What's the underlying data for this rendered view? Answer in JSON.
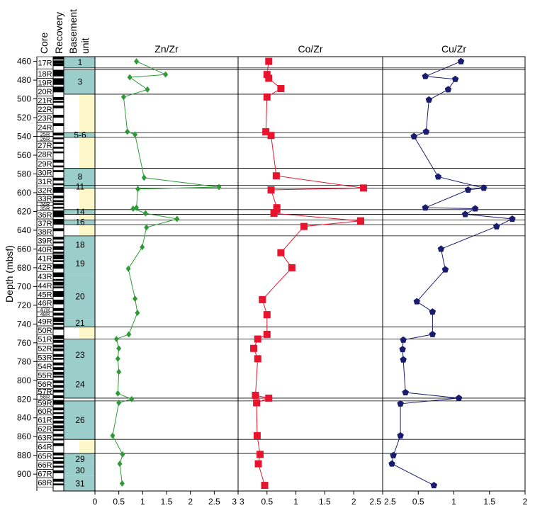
{
  "chart_data": {
    "type": "scatter",
    "ylabel": "Depth (mbsf)",
    "ylim": [
      455,
      918
    ],
    "yticks": [
      460,
      480,
      500,
      520,
      540,
      560,
      580,
      600,
      620,
      640,
      660,
      680,
      700,
      720,
      740,
      760,
      780,
      800,
      820,
      840,
      860,
      880,
      900
    ],
    "column_headers": {
      "core": "Core",
      "recovery": "Recovery",
      "basement_unit": "Basement\nunit"
    },
    "cores": [
      {
        "label": "17R",
        "top": 455,
        "bottom": 468
      },
      {
        "label": "18R",
        "top": 468,
        "bottom": 478
      },
      {
        "label": "19R",
        "top": 478,
        "bottom": 487
      },
      {
        "label": "20R",
        "top": 487,
        "bottom": 497
      },
      {
        "label": "21R",
        "top": 497,
        "bottom": 506
      },
      {
        "label": "22R",
        "top": 506,
        "bottom": 516
      },
      {
        "label": "23R",
        "top": 516,
        "bottom": 525
      },
      {
        "label": "24R",
        "top": 525,
        "bottom": 535
      },
      {
        "label": "25R",
        "top": 535,
        "bottom": 540
      },
      {
        "label": "26R",
        "top": 540,
        "bottom": 545
      },
      {
        "label": "27R",
        "top": 545,
        "bottom": 554
      },
      {
        "label": "28R",
        "top": 554,
        "bottom": 564
      },
      {
        "label": "29R",
        "top": 564,
        "bottom": 574
      },
      {
        "label": "30R",
        "top": 574,
        "bottom": 583
      },
      {
        "label": "31R",
        "top": 583,
        "bottom": 593
      },
      {
        "label": "32R",
        "top": 593,
        "bottom": 602
      },
      {
        "label": "33R",
        "top": 602,
        "bottom": 610
      },
      {
        "label": "34R",
        "top": 610,
        "bottom": 614
      },
      {
        "label": "35R",
        "top": 614,
        "bottom": 619
      },
      {
        "label": "36R",
        "top": 619,
        "bottom": 628
      },
      {
        "label": "37R",
        "top": 628,
        "bottom": 637
      },
      {
        "label": "38R",
        "top": 637,
        "bottom": 646
      },
      {
        "label": "39R",
        "top": 646,
        "bottom": 656
      },
      {
        "label": "40R",
        "top": 656,
        "bottom": 665
      },
      {
        "label": "41R",
        "top": 665,
        "bottom": 675
      },
      {
        "label": "42R",
        "top": 675,
        "bottom": 684
      },
      {
        "label": "43R",
        "top": 684,
        "bottom": 694
      },
      {
        "label": "44R",
        "top": 694,
        "bottom": 704
      },
      {
        "label": "45R",
        "top": 704,
        "bottom": 713
      },
      {
        "label": "46R",
        "top": 713,
        "bottom": 722
      },
      {
        "label": "47R",
        "top": 722,
        "bottom": 727
      },
      {
        "label": "48R",
        "top": 727,
        "bottom": 732
      },
      {
        "label": "49R",
        "top": 732,
        "bottom": 742
      },
      {
        "label": "50R",
        "top": 742,
        "bottom": 751
      },
      {
        "label": "51R",
        "top": 751,
        "bottom": 761
      },
      {
        "label": "52R",
        "top": 761,
        "bottom": 771
      },
      {
        "label": "53R",
        "top": 771,
        "bottom": 780
      },
      {
        "label": "54R",
        "top": 780,
        "bottom": 790
      },
      {
        "label": "55R",
        "top": 790,
        "bottom": 799
      },
      {
        "label": "56R",
        "top": 799,
        "bottom": 809
      },
      {
        "label": "57R",
        "top": 809,
        "bottom": 815
      },
      {
        "label": "58R",
        "top": 815,
        "bottom": 820
      },
      {
        "label": "59R",
        "top": 820,
        "bottom": 828
      },
      {
        "label": "60R",
        "top": 828,
        "bottom": 837
      },
      {
        "label": "61R",
        "top": 837,
        "bottom": 847
      },
      {
        "label": "62R",
        "top": 847,
        "bottom": 856
      },
      {
        "label": "63R",
        "top": 856,
        "bottom": 866
      },
      {
        "label": "64R",
        "top": 866,
        "bottom": 876
      },
      {
        "label": "65R",
        "top": 876,
        "bottom": 885
      },
      {
        "label": "66R",
        "top": 885,
        "bottom": 895
      },
      {
        "label": "67R",
        "top": 895,
        "bottom": 904
      },
      {
        "label": "68R",
        "top": 904,
        "bottom": 914
      }
    ],
    "recovery": [
      [
        455,
        458
      ],
      [
        459,
        462
      ],
      [
        462,
        465
      ],
      [
        469,
        476
      ],
      [
        478,
        485
      ],
      [
        487,
        493
      ],
      [
        498,
        501
      ],
      [
        502,
        504
      ],
      [
        507,
        510
      ],
      [
        517,
        520
      ],
      [
        526,
        529
      ],
      [
        536,
        539
      ],
      [
        541,
        543
      ],
      [
        546,
        548
      ],
      [
        551,
        553
      ],
      [
        556,
        558
      ],
      [
        565,
        568
      ],
      [
        571,
        573
      ],
      [
        576,
        578
      ],
      [
        584,
        587
      ],
      [
        590,
        592
      ],
      [
        594,
        600
      ],
      [
        603,
        606
      ],
      [
        608,
        610
      ],
      [
        611,
        613
      ],
      [
        615,
        617
      ],
      [
        619,
        626
      ],
      [
        628,
        634
      ],
      [
        638,
        641
      ],
      [
        647,
        650
      ],
      [
        652,
        654
      ],
      [
        657,
        661
      ],
      [
        663,
        665
      ],
      [
        666,
        671
      ],
      [
        672,
        674
      ],
      [
        676,
        681
      ],
      [
        685,
        690
      ],
      [
        692,
        694
      ],
      [
        695,
        699
      ],
      [
        700,
        702
      ],
      [
        705,
        711
      ],
      [
        714,
        719
      ],
      [
        723,
        726
      ],
      [
        728,
        731
      ],
      [
        733,
        738
      ],
      [
        739,
        741
      ],
      [
        743,
        746
      ],
      [
        752,
        756
      ],
      [
        757,
        760
      ],
      [
        762,
        765
      ],
      [
        766,
        769
      ],
      [
        772,
        775
      ],
      [
        776,
        778
      ],
      [
        781,
        784
      ],
      [
        786,
        789
      ],
      [
        791,
        794
      ],
      [
        795,
        797
      ],
      [
        800,
        803
      ],
      [
        805,
        808
      ],
      [
        810,
        813
      ],
      [
        816,
        819
      ],
      [
        821,
        826
      ],
      [
        829,
        832
      ],
      [
        834,
        836
      ],
      [
        838,
        841
      ],
      [
        843,
        846
      ],
      [
        848,
        851
      ],
      [
        852,
        854
      ],
      [
        857,
        860
      ],
      [
        862,
        864
      ],
      [
        867,
        870
      ],
      [
        877,
        880
      ],
      [
        882,
        884
      ],
      [
        886,
        889
      ],
      [
        891,
        893
      ],
      [
        896,
        899
      ],
      [
        905,
        908
      ],
      [
        910,
        912
      ]
    ],
    "units": [
      {
        "label": "1",
        "top": 455,
        "bottom": 467,
        "type": "unit"
      },
      {
        "label": "",
        "top": 467,
        "bottom": 469,
        "type": "thin"
      },
      {
        "label": "3",
        "top": 469,
        "bottom": 495,
        "type": "unit"
      },
      {
        "label": "",
        "top": 495,
        "bottom": 536,
        "type": "sediment"
      },
      {
        "label": "5-6",
        "top": 536,
        "bottom": 541,
        "type": "unit"
      },
      {
        "label": "",
        "top": 541,
        "bottom": 574,
        "type": "sediment"
      },
      {
        "label": "8",
        "top": 574,
        "bottom": 592,
        "type": "unit"
      },
      {
        "label": "11",
        "top": 592,
        "bottom": 595,
        "type": "unit"
      },
      {
        "label": "",
        "top": 595,
        "bottom": 618,
        "type": "sediment"
      },
      {
        "label": "14",
        "top": 618,
        "bottom": 623,
        "type": "unit"
      },
      {
        "label": "",
        "top": 623,
        "bottom": 629,
        "type": "sediment"
      },
      {
        "label": "16",
        "top": 629,
        "bottom": 634,
        "type": "unit"
      },
      {
        "label": "",
        "top": 634,
        "bottom": 646,
        "type": "sediment"
      },
      {
        "label": "18",
        "top": 646,
        "bottom": 665,
        "type": "unit"
      },
      {
        "label": "19",
        "top": 665,
        "bottom": 686,
        "type": "unit"
      },
      {
        "label": "20",
        "top": 686,
        "bottom": 735,
        "type": "unit"
      },
      {
        "label": "21",
        "top": 735,
        "bottom": 743,
        "type": "unit"
      },
      {
        "label": "",
        "top": 743,
        "bottom": 756,
        "type": "sediment"
      },
      {
        "label": "23",
        "top": 756,
        "bottom": 790,
        "type": "unit"
      },
      {
        "label": "24",
        "top": 790,
        "bottom": 819,
        "type": "unit"
      },
      {
        "label": "",
        "top": 819,
        "bottom": 822,
        "type": "thin"
      },
      {
        "label": "26",
        "top": 822,
        "bottom": 863,
        "type": "unit"
      },
      {
        "label": "",
        "top": 863,
        "bottom": 878,
        "type": "sediment"
      },
      {
        "label": "29",
        "top": 878,
        "bottom": 890,
        "type": "unit"
      },
      {
        "label": "30",
        "top": 890,
        "bottom": 902,
        "type": "unit"
      },
      {
        "label": "31",
        "top": 902,
        "bottom": 918,
        "type": "unit"
      }
    ],
    "boundaries": [
      467,
      469,
      495,
      536,
      541,
      574,
      592,
      595,
      618,
      623,
      629,
      634,
      646,
      743,
      756,
      819,
      822,
      863,
      878
    ],
    "panels": [
      {
        "title": "Zn/Zr",
        "xlim": [
          0,
          3
        ],
        "xticks": [
          0,
          0.5,
          1,
          1.5,
          2,
          2.5,
          3
        ],
        "xticklabels": [
          "0",
          "0.5",
          "1",
          "1.5",
          "2",
          "2.5",
          "3"
        ],
        "color": "#2e9a36",
        "marker": "diamond",
        "points": [
          {
            "x": 0.87,
            "y": 460
          },
          {
            "x": 1.48,
            "y": 474
          },
          {
            "x": 0.73,
            "y": 477
          },
          {
            "x": 1.1,
            "y": 490
          },
          {
            "x": 0.6,
            "y": 498
          },
          {
            "x": 0.68,
            "y": 535
          },
          {
            "x": 0.84,
            "y": 538
          },
          {
            "x": 1.03,
            "y": 584
          },
          {
            "x": 2.6,
            "y": 594
          },
          {
            "x": 0.9,
            "y": 596
          },
          {
            "x": 0.87,
            "y": 616
          },
          {
            "x": 0.8,
            "y": 617
          },
          {
            "x": 1.06,
            "y": 622
          },
          {
            "x": 1.72,
            "y": 628
          },
          {
            "x": 1.08,
            "y": 637
          },
          {
            "x": 0.99,
            "y": 658
          },
          {
            "x": 0.7,
            "y": 681
          },
          {
            "x": 0.84,
            "y": 713
          },
          {
            "x": 0.89,
            "y": 728
          },
          {
            "x": 0.71,
            "y": 751
          },
          {
            "x": 0.45,
            "y": 756
          },
          {
            "x": 0.5,
            "y": 766
          },
          {
            "x": 0.48,
            "y": 777
          },
          {
            "x": 0.5,
            "y": 791
          },
          {
            "x": 0.48,
            "y": 814
          },
          {
            "x": 0.77,
            "y": 820
          },
          {
            "x": 0.5,
            "y": 824
          },
          {
            "x": 0.37,
            "y": 859
          },
          {
            "x": 0.58,
            "y": 879
          },
          {
            "x": 0.52,
            "y": 889
          },
          {
            "x": 0.57,
            "y": 910
          }
        ]
      },
      {
        "title": "Co/Zr",
        "xlim": [
          0,
          2.5
        ],
        "xticks": [
          0,
          0.5,
          1,
          1.5,
          2,
          2.5
        ],
        "xticklabels": [
          "3",
          "0.5",
          "1",
          "1.5",
          "2",
          "2.5"
        ],
        "color": "#e8142e",
        "marker": "square",
        "points": [
          {
            "x": 0.53,
            "y": 460
          },
          {
            "x": 0.5,
            "y": 474
          },
          {
            "x": 0.53,
            "y": 478
          },
          {
            "x": 0.74,
            "y": 489
          },
          {
            "x": 0.5,
            "y": 498
          },
          {
            "x": 0.48,
            "y": 535
          },
          {
            "x": 0.57,
            "y": 539
          },
          {
            "x": 0.66,
            "y": 582
          },
          {
            "x": 2.17,
            "y": 595
          },
          {
            "x": 0.57,
            "y": 597
          },
          {
            "x": 0.67,
            "y": 616
          },
          {
            "x": 0.67,
            "y": 618
          },
          {
            "x": 0.62,
            "y": 622
          },
          {
            "x": 2.12,
            "y": 630
          },
          {
            "x": 1.14,
            "y": 636
          },
          {
            "x": 0.74,
            "y": 664
          },
          {
            "x": 0.93,
            "y": 680
          },
          {
            "x": 0.42,
            "y": 714
          },
          {
            "x": 0.5,
            "y": 730
          },
          {
            "x": 0.5,
            "y": 751
          },
          {
            "x": 0.34,
            "y": 756
          },
          {
            "x": 0.27,
            "y": 766
          },
          {
            "x": 0.34,
            "y": 777
          },
          {
            "x": 0.3,
            "y": 816
          },
          {
            "x": 0.53,
            "y": 819
          },
          {
            "x": 0.32,
            "y": 824
          },
          {
            "x": 0.33,
            "y": 859
          },
          {
            "x": 0.38,
            "y": 879
          },
          {
            "x": 0.35,
            "y": 889
          },
          {
            "x": 0.46,
            "y": 912
          }
        ]
      },
      {
        "title": "Cu/Zr",
        "xlim": [
          0,
          2
        ],
        "xticks": [
          0,
          0.5,
          1,
          1.5,
          2
        ],
        "xticklabels": [
          "2.5",
          "0.5",
          "1",
          "1.5",
          "2"
        ],
        "color": "#1a1c6e",
        "marker": "pentagon",
        "points": [
          {
            "x": 1.1,
            "y": 460
          },
          {
            "x": 0.6,
            "y": 476
          },
          {
            "x": 1.02,
            "y": 479
          },
          {
            "x": 0.92,
            "y": 490
          },
          {
            "x": 0.65,
            "y": 501
          },
          {
            "x": 0.61,
            "y": 535
          },
          {
            "x": 0.44,
            "y": 540
          },
          {
            "x": 0.78,
            "y": 583
          },
          {
            "x": 1.42,
            "y": 595
          },
          {
            "x": 1.2,
            "y": 597
          },
          {
            "x": 0.6,
            "y": 616
          },
          {
            "x": 1.3,
            "y": 617
          },
          {
            "x": 1.16,
            "y": 623
          },
          {
            "x": 1.82,
            "y": 628
          },
          {
            "x": 1.6,
            "y": 636
          },
          {
            "x": 0.82,
            "y": 660
          },
          {
            "x": 0.88,
            "y": 682
          },
          {
            "x": 0.48,
            "y": 716
          },
          {
            "x": 0.7,
            "y": 727
          },
          {
            "x": 0.7,
            "y": 751
          },
          {
            "x": 0.29,
            "y": 757
          },
          {
            "x": 0.28,
            "y": 767
          },
          {
            "x": 0.29,
            "y": 778
          },
          {
            "x": 0.32,
            "y": 813
          },
          {
            "x": 1.07,
            "y": 819
          },
          {
            "x": 0.25,
            "y": 825
          },
          {
            "x": 0.25,
            "y": 859
          },
          {
            "x": 0.15,
            "y": 880
          },
          {
            "x": 0.13,
            "y": 889
          },
          {
            "x": 0.72,
            "y": 912
          }
        ]
      }
    ]
  }
}
